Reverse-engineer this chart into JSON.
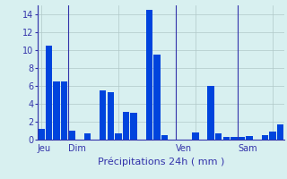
{
  "values": [
    1.2,
    10.5,
    6.5,
    6.5,
    1.0,
    0.0,
    0.7,
    0.0,
    5.5,
    5.3,
    0.7,
    3.1,
    3.0,
    0.0,
    14.5,
    9.5,
    0.5,
    0.0,
    0.0,
    0.0,
    0.8,
    0.0,
    6.0,
    0.7,
    0.3,
    0.3,
    0.3,
    0.4,
    0.0,
    0.5,
    0.9,
    1.7
  ],
  "n_bars": 32,
  "day_labels": [
    "Jeu",
    "Dim",
    "Ven",
    "Sam"
  ],
  "day_line_x": [
    0,
    4,
    18,
    26
  ],
  "ylim": [
    0,
    15
  ],
  "yticks": [
    0,
    2,
    4,
    6,
    8,
    10,
    12,
    14
  ],
  "xlabel": "Précipitations 24h ( mm )",
  "bar_color": "#0044dd",
  "background_color": "#d8f0f0",
  "grid_color": "#b0c8c8",
  "label_color": "#3333aa",
  "xlabel_fontsize": 8,
  "tick_fontsize": 7
}
